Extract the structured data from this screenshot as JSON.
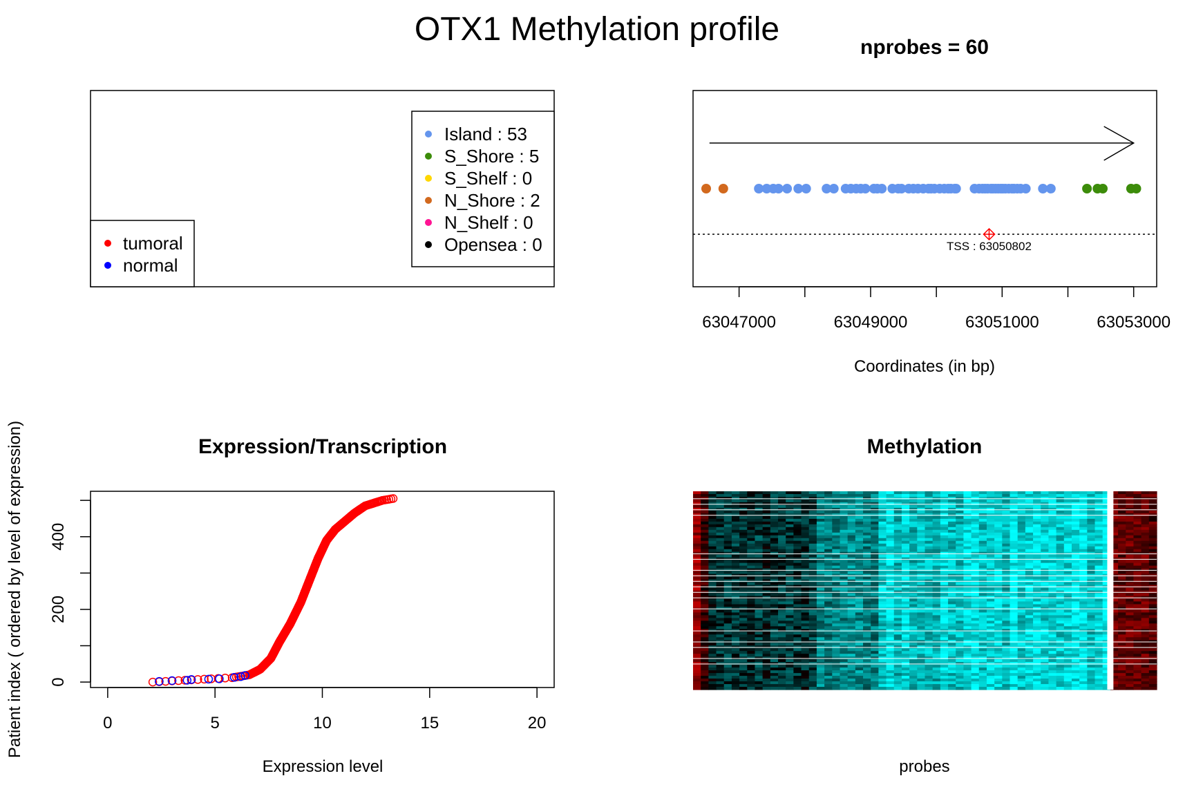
{
  "title": "OTX1 Methylation profile",
  "legend_panel": {
    "samples": [
      {
        "label": "tumoral",
        "color": "#ff0000"
      },
      {
        "label": "normal",
        "color": "#0000ff"
      }
    ],
    "categories": [
      {
        "label": "Island : 53",
        "color": "#6495ed"
      },
      {
        "label": "S_Shore : 5",
        "color": "#3c8c0a"
      },
      {
        "label": "S_Shelf : 0",
        "color": "#ffd700"
      },
      {
        "label": "N_Shore : 2",
        "color": "#d2691e"
      },
      {
        "label": "N_Shelf : 0",
        "color": "#ff1493"
      },
      {
        "label": "Opensea : 0",
        "color": "#000000"
      }
    ]
  },
  "chart_data": [
    {
      "type": "scatter",
      "title": "nprobes = 60",
      "xlabel": "Coordinates (in bp)",
      "ylabel": "",
      "xlim": [
        46300,
        53350
      ],
      "xticks": [
        47000,
        48000,
        49000,
        50000,
        51000,
        52000,
        53000
      ],
      "xtick_labels": [
        "63047000",
        "",
        "63049000",
        "",
        "63051000",
        "",
        "63053000"
      ],
      "arrow": {
        "direction": "right",
        "from": 46550,
        "to": 53000
      },
      "tss": {
        "label": "TSS : 63050802",
        "x": 50802,
        "color": "#ff0000"
      },
      "series": [
        {
          "category": "N_Shore",
          "color": "#d2691e",
          "x": [
            46500,
            46760
          ]
        },
        {
          "category": "Island",
          "color": "#6495ed",
          "x": [
            47300,
            47420,
            47520,
            47600,
            47730,
            47900,
            48020,
            48330,
            48440,
            48620,
            48700,
            48780,
            48850,
            48920,
            49050,
            49100,
            49170,
            49330,
            49420,
            49470,
            49580,
            49650,
            49720,
            49800,
            49880,
            49920,
            49970,
            50050,
            50120,
            50180,
            50220,
            50280,
            50300,
            50580,
            50650,
            50700,
            50740,
            50780,
            50830,
            50860,
            50900,
            50940,
            50980,
            51010,
            51050,
            51100,
            51150,
            51180,
            51230,
            51280,
            51360,
            51620,
            51740
          ]
        },
        {
          "category": "S_Shore",
          "color": "#3c8c0a",
          "x": [
            52290,
            52450,
            52530,
            52960,
            53040
          ]
        }
      ]
    },
    {
      "type": "scatter",
      "title": "Expression/Transcription",
      "xlabel": "Expression level",
      "ylabel": "Patient index ( ordered by level of expression)",
      "xlim": [
        -0.8,
        20.8
      ],
      "ylim": [
        -15,
        525
      ],
      "xticks": [
        0,
        5,
        10,
        15,
        20
      ],
      "yticks": [
        0,
        200,
        400
      ],
      "y_minor_ticks": [
        100,
        300,
        500
      ],
      "curve": {
        "color": "#ff0000",
        "n": 505,
        "knots_x": [
          2.1,
          4.5,
          5.8,
          6.6,
          7.1,
          7.6,
          8.0,
          8.5,
          9.0,
          9.4,
          9.8,
          10.2,
          10.6,
          11.0,
          11.5,
          12.0,
          12.8,
          13.3
        ],
        "knots_y": [
          0,
          8,
          12,
          20,
          35,
          65,
          110,
          160,
          220,
          280,
          340,
          390,
          420,
          440,
          465,
          485,
          500,
          505
        ]
      },
      "normal_points": [
        {
          "x": 2.4,
          "y": 2
        },
        {
          "x": 3.0,
          "y": 4
        },
        {
          "x": 3.7,
          "y": 5
        },
        {
          "x": 3.9,
          "y": 7
        },
        {
          "x": 4.7,
          "y": 8
        },
        {
          "x": 5.2,
          "y": 9
        },
        {
          "x": 5.9,
          "y": 13
        },
        {
          "x": 6.2,
          "y": 15
        },
        {
          "x": 6.4,
          "y": 18
        }
      ],
      "normal_color": "#0000ff"
    },
    {
      "type": "heatmap",
      "title": "Methylation",
      "xlabel": "probes",
      "ylabel": "",
      "n_probes": 60,
      "colors": {
        "low": "#00ffff",
        "mid": "#000000",
        "high": "#ff0000"
      }
    }
  ]
}
